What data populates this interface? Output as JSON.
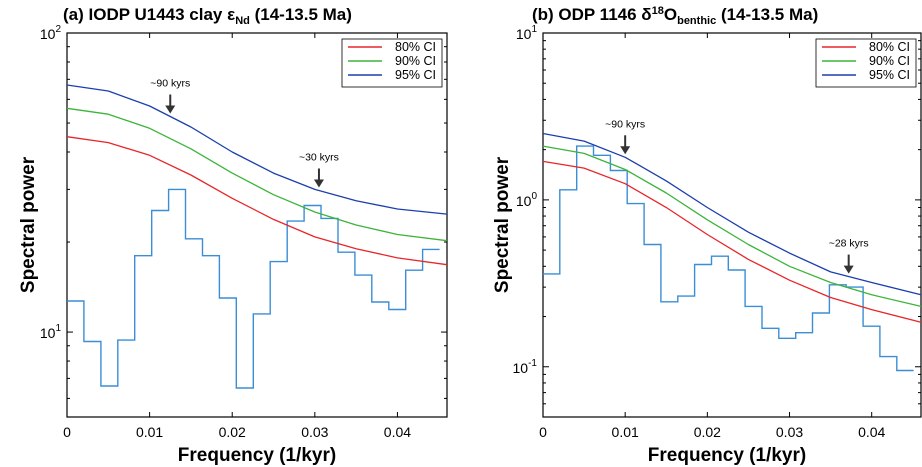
{
  "chart_data": [
    {
      "type": "line",
      "panel": "(a)",
      "title": {
        "main": "(a) IODP U1443 clay ε",
        "sub": "Nd",
        "tail": " (14-13.5 Ma)"
      },
      "xlabel": "Frequency (1/kyr)",
      "ylabel": "Spectral power",
      "xlim": [
        0,
        0.046
      ],
      "ylim": [
        5.2,
        100
      ],
      "yscale": "log",
      "xticks": [
        {
          "value": 0,
          "label": "0"
        },
        {
          "value": 0.01,
          "label": "0.01"
        },
        {
          "value": 0.02,
          "label": "0.02"
        },
        {
          "value": 0.03,
          "label": "0.03"
        },
        {
          "value": 0.04,
          "label": "0.04"
        }
      ],
      "yticks": [
        {
          "value": 10,
          "base": "10",
          "exp": "1"
        },
        {
          "value": 100,
          "base": "10",
          "exp": "2"
        }
      ],
      "legend": {
        "position": "top-right",
        "entries": [
          {
            "label": "80% CI",
            "color": "#e8262a"
          },
          {
            "label": "90% CI",
            "color": "#3cb43a"
          },
          {
            "label": "95% CI",
            "color": "#1c3fae"
          }
        ]
      },
      "confidence_curves": [
        {
          "name": "80% CI",
          "color": "#e8262a",
          "x": [
            0,
            0.005,
            0.01,
            0.015,
            0.02,
            0.025,
            0.03,
            0.035,
            0.04,
            0.046
          ],
          "y": [
            45,
            43,
            39,
            33.5,
            28,
            23.8,
            20.8,
            19,
            17.7,
            16.8
          ]
        },
        {
          "name": "90% CI",
          "color": "#3cb43a",
          "x": [
            0,
            0.005,
            0.01,
            0.015,
            0.02,
            0.025,
            0.03,
            0.035,
            0.04,
            0.046
          ],
          "y": [
            56,
            53.5,
            48,
            41,
            34,
            28.8,
            25.2,
            22.8,
            21.2,
            20.2
          ]
        },
        {
          "name": "95% CI",
          "color": "#1c3fae",
          "x": [
            0,
            0.005,
            0.01,
            0.015,
            0.02,
            0.025,
            0.03,
            0.035,
            0.04,
            0.046
          ],
          "y": [
            67,
            64,
            57,
            48.5,
            40,
            34,
            30,
            27.5,
            25.8,
            24.8
          ]
        }
      ],
      "spectrum": {
        "color": "#3a8ed6",
        "bin_width": 0.00205,
        "values": [
          12.7,
          9.3,
          6.6,
          9.4,
          18,
          25.5,
          30,
          20.5,
          18,
          13,
          6.5,
          11.5,
          17.2,
          23.5,
          26.5,
          24,
          18.5,
          15.5,
          12.6,
          11.9,
          16.1,
          18.9
        ]
      },
      "annotations": [
        {
          "text": "~90 kyrs",
          "x": 0.0125
        },
        {
          "text": "~30 kyrs",
          "x": 0.0305
        }
      ]
    },
    {
      "type": "line",
      "panel": "(b)",
      "title": {
        "main": "(b) ODP 1146 δ",
        "sup": "18",
        "mid": "O",
        "sub": "benthic",
        "tail": " (14-13.5 Ma)"
      },
      "xlabel": "Frequency (1/kyr)",
      "ylabel": "Spectral power",
      "xlim": [
        0,
        0.046
      ],
      "ylim": [
        0.05,
        10
      ],
      "yscale": "log",
      "xticks": [
        {
          "value": 0,
          "label": "0"
        },
        {
          "value": 0.01,
          "label": "0.01"
        },
        {
          "value": 0.02,
          "label": "0.02"
        },
        {
          "value": 0.03,
          "label": "0.03"
        },
        {
          "value": 0.04,
          "label": "0.04"
        }
      ],
      "yticks": [
        {
          "value": 0.1,
          "base": "10",
          "exp": "-1"
        },
        {
          "value": 1,
          "base": "10",
          "exp": "0"
        },
        {
          "value": 10,
          "base": "10",
          "exp": "1"
        }
      ],
      "legend": {
        "position": "top-right",
        "entries": [
          {
            "label": "80% CI",
            "color": "#e8262a"
          },
          {
            "label": "90% CI",
            "color": "#3cb43a"
          },
          {
            "label": "95% CI",
            "color": "#1c3fae"
          }
        ]
      },
      "confidence_curves": [
        {
          "name": "80% CI",
          "color": "#e8262a",
          "x": [
            0,
            0.005,
            0.01,
            0.015,
            0.02,
            0.025,
            0.03,
            0.035,
            0.04,
            0.046
          ],
          "y": [
            1.7,
            1.55,
            1.25,
            0.9,
            0.62,
            0.44,
            0.33,
            0.26,
            0.22,
            0.185
          ]
        },
        {
          "name": "90% CI",
          "color": "#3cb43a",
          "x": [
            0,
            0.005,
            0.01,
            0.015,
            0.02,
            0.025,
            0.03,
            0.035,
            0.04,
            0.046
          ],
          "y": [
            2.1,
            1.9,
            1.52,
            1.1,
            0.76,
            0.54,
            0.4,
            0.32,
            0.27,
            0.23
          ]
        },
        {
          "name": "95% CI",
          "color": "#1c3fae",
          "x": [
            0,
            0.005,
            0.01,
            0.015,
            0.02,
            0.025,
            0.03,
            0.035,
            0.04,
            0.046
          ],
          "y": [
            2.5,
            2.25,
            1.8,
            1.3,
            0.9,
            0.64,
            0.48,
            0.37,
            0.32,
            0.27
          ]
        }
      ],
      "spectrum": {
        "color": "#3a8ed6",
        "bin_width": 0.00205,
        "values": [
          0.36,
          1.15,
          2.1,
          1.85,
          1.5,
          0.95,
          0.54,
          0.245,
          0.265,
          0.41,
          0.46,
          0.38,
          0.23,
          0.17,
          0.148,
          0.16,
          0.21,
          0.31,
          0.3,
          0.175,
          0.115,
          0.095
        ]
      },
      "annotations": [
        {
          "text": "~90 kyrs",
          "x": 0.01
        },
        {
          "text": "~28 kyrs",
          "x": 0.0372
        }
      ]
    }
  ]
}
